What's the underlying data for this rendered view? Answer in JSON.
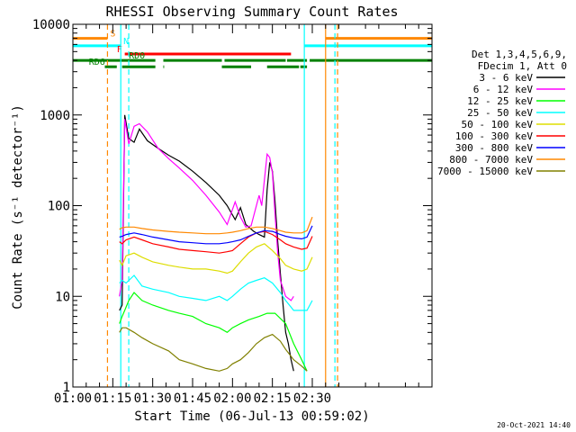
{
  "chart_data": {
    "type": "line",
    "title": "RHESSI Observing Summary Count Rates",
    "xlabel": "Start Time (06-Jul-13 00:59:02)",
    "ylabel": "Count Rate (s⁻¹ detector⁻¹)",
    "y_scale": "log",
    "ylim": [
      1,
      10000
    ],
    "x_unit": "minutes from 01:00",
    "xlim": [
      0,
      135
    ],
    "x_ticks": [
      {
        "label": "01:00",
        "value": 0
      },
      {
        "label": "01:15",
        "value": 15
      },
      {
        "label": "01:30",
        "value": 30
      },
      {
        "label": "01:45",
        "value": 45
      },
      {
        "label": "02:00",
        "value": 60
      },
      {
        "label": "02:15",
        "value": 75
      },
      {
        "label": "02:30",
        "value": 90
      }
    ],
    "y_ticks": [
      {
        "label": "1",
        "value": 1
      },
      {
        "label": "10",
        "value": 10
      },
      {
        "label": "100",
        "value": 100
      },
      {
        "label": "1000",
        "value": 1000
      },
      {
        "label": "10000",
        "value": 10000
      }
    ],
    "legend": {
      "position": "right",
      "header": [
        "Det 1,3,4,5,6,9,",
        "FDecim 1, Att 0"
      ]
    },
    "series": [
      {
        "name": "3 - 6 keV",
        "color": "#000000",
        "points": [
          [
            17.5,
            7
          ],
          [
            18.5,
            8
          ],
          [
            19.5,
            1000
          ],
          [
            21,
            550
          ],
          [
            23,
            500
          ],
          [
            25,
            700
          ],
          [
            28,
            520
          ],
          [
            32,
            430
          ],
          [
            36,
            360
          ],
          [
            40,
            310
          ],
          [
            45,
            240
          ],
          [
            50,
            180
          ],
          [
            55,
            130
          ],
          [
            58,
            100
          ],
          [
            61,
            70
          ],
          [
            63,
            95
          ],
          [
            65,
            62
          ],
          [
            68,
            52
          ],
          [
            70,
            48
          ],
          [
            72,
            45
          ],
          [
            73,
            150
          ],
          [
            74,
            300
          ],
          [
            75,
            240
          ],
          [
            76,
            110
          ],
          [
            77,
            40
          ],
          [
            78,
            18
          ],
          [
            79,
            8
          ],
          [
            80,
            4
          ],
          [
            81,
            3
          ],
          [
            82,
            2
          ],
          [
            83,
            1.5
          ]
        ]
      },
      {
        "name": "6 - 12 keV",
        "color": "#ff00ff",
        "points": [
          [
            17.5,
            10
          ],
          [
            18.5,
            15
          ],
          [
            19.5,
            900
          ],
          [
            21,
            480
          ],
          [
            23,
            750
          ],
          [
            25,
            800
          ],
          [
            28,
            650
          ],
          [
            32,
            430
          ],
          [
            36,
            330
          ],
          [
            40,
            260
          ],
          [
            45,
            190
          ],
          [
            50,
            130
          ],
          [
            55,
            85
          ],
          [
            58,
            62
          ],
          [
            61,
            110
          ],
          [
            63,
            75
          ],
          [
            65,
            58
          ],
          [
            67,
            60
          ],
          [
            70,
            130
          ],
          [
            71,
            100
          ],
          [
            73,
            370
          ],
          [
            74,
            340
          ],
          [
            75,
            230
          ],
          [
            76,
            80
          ],
          [
            77,
            30
          ],
          [
            78,
            15
          ],
          [
            80,
            10
          ],
          [
            82,
            9
          ],
          [
            83,
            10
          ]
        ]
      },
      {
        "name": "12 - 25 keV",
        "color": "#00ff00",
        "points": [
          [
            17.5,
            5
          ],
          [
            18.5,
            6
          ],
          [
            19.5,
            7
          ],
          [
            21,
            9
          ],
          [
            23,
            11
          ],
          [
            26,
            9
          ],
          [
            30,
            8
          ],
          [
            36,
            7
          ],
          [
            40,
            6.5
          ],
          [
            45,
            6
          ],
          [
            50,
            5
          ],
          [
            55,
            4.5
          ],
          [
            58,
            4
          ],
          [
            60,
            4.5
          ],
          [
            63,
            5
          ],
          [
            66,
            5.5
          ],
          [
            70,
            6
          ],
          [
            73,
            6.5
          ],
          [
            76,
            6.5
          ],
          [
            80,
            5
          ],
          [
            83,
            3
          ],
          [
            86,
            2
          ],
          [
            88,
            1.5
          ]
        ]
      },
      {
        "name": "25 - 50 keV",
        "color": "#00ffff",
        "points": [
          [
            17.5,
            14
          ],
          [
            18.5,
            15
          ],
          [
            20,
            14
          ],
          [
            23,
            17
          ],
          [
            26,
            13
          ],
          [
            30,
            12
          ],
          [
            36,
            11
          ],
          [
            40,
            10
          ],
          [
            45,
            9.5
          ],
          [
            50,
            9
          ],
          [
            55,
            10
          ],
          [
            58,
            9
          ],
          [
            60,
            10
          ],
          [
            63,
            12
          ],
          [
            66,
            14
          ],
          [
            69,
            15
          ],
          [
            72,
            16
          ],
          [
            75,
            14
          ],
          [
            78,
            11
          ],
          [
            80,
            9
          ],
          [
            83,
            7
          ],
          [
            86,
            7
          ],
          [
            88,
            7
          ],
          [
            90,
            9
          ]
        ]
      },
      {
        "name": "50 - 100 keV",
        "color": "#dddd00",
        "points": [
          [
            17.5,
            25
          ],
          [
            18.5,
            22
          ],
          [
            20,
            28
          ],
          [
            23,
            30
          ],
          [
            26,
            27
          ],
          [
            30,
            24
          ],
          [
            36,
            22
          ],
          [
            40,
            21
          ],
          [
            45,
            20
          ],
          [
            50,
            20
          ],
          [
            55,
            19
          ],
          [
            58,
            18
          ],
          [
            60,
            19
          ],
          [
            63,
            24
          ],
          [
            66,
            30
          ],
          [
            69,
            35
          ],
          [
            72,
            38
          ],
          [
            75,
            32
          ],
          [
            78,
            26
          ],
          [
            80,
            22
          ],
          [
            83,
            20
          ],
          [
            86,
            19
          ],
          [
            88,
            20
          ],
          [
            90,
            27
          ]
        ]
      },
      {
        "name": "100 - 300 keV",
        "color": "#ff0000",
        "points": [
          [
            17.5,
            40
          ],
          [
            18.5,
            38
          ],
          [
            20,
            42
          ],
          [
            23,
            45
          ],
          [
            26,
            42
          ],
          [
            30,
            38
          ],
          [
            36,
            35
          ],
          [
            40,
            33
          ],
          [
            45,
            32
          ],
          [
            50,
            31
          ],
          [
            55,
            30
          ],
          [
            58,
            31
          ],
          [
            60,
            32
          ],
          [
            63,
            38
          ],
          [
            66,
            45
          ],
          [
            69,
            50
          ],
          [
            72,
            52
          ],
          [
            75,
            48
          ],
          [
            78,
            42
          ],
          [
            80,
            38
          ],
          [
            83,
            35
          ],
          [
            86,
            33
          ],
          [
            88,
            34
          ],
          [
            90,
            46
          ]
        ]
      },
      {
        "name": "300 - 800 keV",
        "color": "#0000ff",
        "points": [
          [
            17.5,
            45
          ],
          [
            18.5,
            46
          ],
          [
            20,
            48
          ],
          [
            23,
            50
          ],
          [
            26,
            48
          ],
          [
            30,
            45
          ],
          [
            36,
            42
          ],
          [
            40,
            40
          ],
          [
            45,
            39
          ],
          [
            50,
            38
          ],
          [
            55,
            38
          ],
          [
            58,
            39
          ],
          [
            60,
            40
          ],
          [
            63,
            42
          ],
          [
            66,
            46
          ],
          [
            69,
            50
          ],
          [
            72,
            53
          ],
          [
            75,
            52
          ],
          [
            78,
            48
          ],
          [
            80,
            46
          ],
          [
            83,
            44
          ],
          [
            86,
            43
          ],
          [
            88,
            45
          ],
          [
            90,
            60
          ]
        ]
      },
      {
        "name": "800 - 7000 keV",
        "color": "#ff8800",
        "points": [
          [
            17.5,
            55
          ],
          [
            18.5,
            57
          ],
          [
            20,
            58
          ],
          [
            23,
            58
          ],
          [
            26,
            56
          ],
          [
            30,
            54
          ],
          [
            36,
            52
          ],
          [
            40,
            51
          ],
          [
            45,
            50
          ],
          [
            50,
            49
          ],
          [
            55,
            49
          ],
          [
            58,
            50
          ],
          [
            60,
            51
          ],
          [
            63,
            53
          ],
          [
            66,
            56
          ],
          [
            69,
            58
          ],
          [
            72,
            58
          ],
          [
            75,
            56
          ],
          [
            78,
            53
          ],
          [
            80,
            51
          ],
          [
            83,
            50
          ],
          [
            86,
            50
          ],
          [
            88,
            53
          ],
          [
            90,
            75
          ]
        ]
      },
      {
        "name": "7000 - 15000 keV",
        "color": "#808000",
        "points": [
          [
            17.5,
            4
          ],
          [
            18.5,
            4.5
          ],
          [
            20,
            4.5
          ],
          [
            23,
            4
          ],
          [
            26,
            3.5
          ],
          [
            30,
            3
          ],
          [
            36,
            2.5
          ],
          [
            40,
            2
          ],
          [
            45,
            1.8
          ],
          [
            50,
            1.6
          ],
          [
            55,
            1.5
          ],
          [
            58,
            1.6
          ],
          [
            60,
            1.8
          ],
          [
            63,
            2
          ],
          [
            66,
            2.4
          ],
          [
            69,
            3
          ],
          [
            72,
            3.5
          ],
          [
            75,
            3.8
          ],
          [
            78,
            3.2
          ],
          [
            80,
            2.6
          ],
          [
            83,
            2
          ],
          [
            86,
            1.7
          ],
          [
            88,
            1.5
          ]
        ]
      }
    ],
    "flag_bars": [
      {
        "label": "S",
        "color": "#ff8800",
        "label_color": "#ff8800",
        "value": 7000,
        "segments": [
          [
            0,
            13
          ],
          [
            95,
            135
          ]
        ],
        "label_at": 14
      },
      {
        "label": "N",
        "color": "#00ffff",
        "label_color": "#00ffff",
        "value": 5800,
        "segments": [
          [
            0,
            18
          ],
          [
            87,
            135
          ]
        ],
        "label_at": 19
      },
      {
        "label": "F",
        "color": "#ff0000",
        "label_color": "#ff0000",
        "value": 4700,
        "segments": [
          [
            19.5,
            82
          ]
        ],
        "label_at": 16.5
      },
      {
        "label": "RD0",
        "color": "#008000",
        "label_color": "#008000",
        "value": 4000,
        "segments": [
          [
            0,
            31
          ],
          [
            34,
            56
          ],
          [
            57,
            80
          ],
          [
            80.5,
            88
          ],
          [
            89,
            135
          ]
        ],
        "label_at": 21
      },
      {
        "label": "RD6",
        "color": "#008000",
        "label_color": "#008000",
        "value": 3400,
        "segments": [
          [
            12,
            16.5
          ],
          [
            18.5,
            31
          ],
          [
            34,
            34.3
          ],
          [
            56,
            67
          ],
          [
            73,
            85
          ],
          [
            85.5,
            88
          ]
        ],
        "label_at": 6
      }
    ],
    "vertical_lines": [
      {
        "value": 13,
        "color": "#ff8800",
        "style": "dashed"
      },
      {
        "value": 18,
        "color": "#00ffff",
        "style": "solid"
      },
      {
        "value": 21,
        "color": "#00ffff",
        "style": "dashed"
      },
      {
        "value": 87,
        "color": "#00ffff",
        "style": "solid"
      },
      {
        "value": 95,
        "color": "#ff8800",
        "style": "solid"
      },
      {
        "value": 98.5,
        "color": "#00ffff",
        "style": "dashed"
      },
      {
        "value": 99.5,
        "color": "#ff8800",
        "style": "dashed"
      }
    ],
    "footer_stamp": "20-Oct-2021 14:40"
  }
}
